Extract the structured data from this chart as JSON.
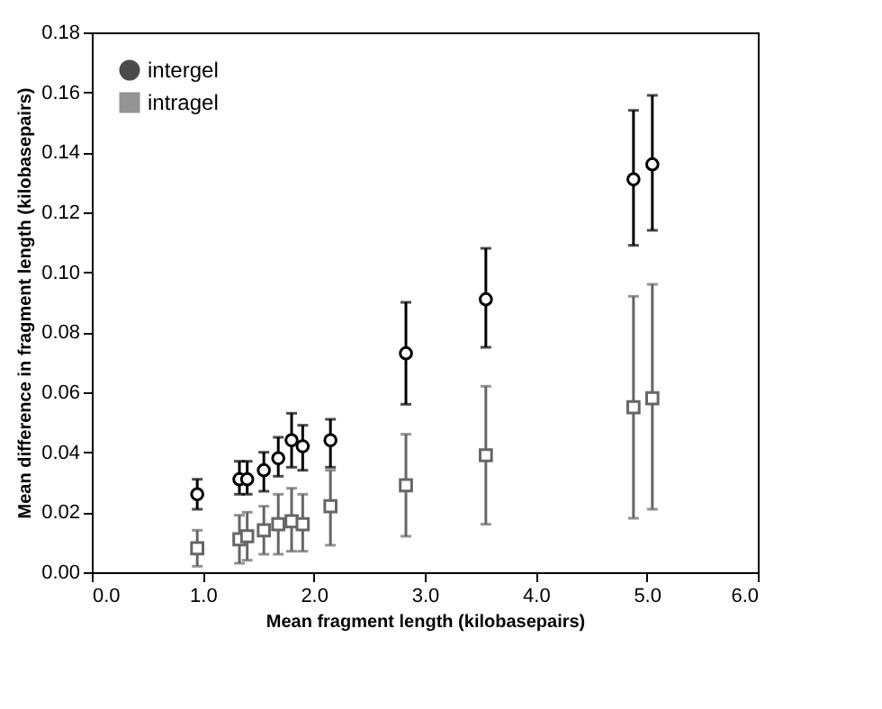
{
  "chart_data": {
    "type": "scatter",
    "xlabel": "Mean fragment length (kilobasepairs)",
    "ylabel": "Mean difference in fragment length (kilobasepairs)",
    "x": [
      0.95,
      1.33,
      1.4,
      1.55,
      1.68,
      1.8,
      1.9,
      2.15,
      2.83,
      3.55,
      4.88,
      5.05
    ],
    "series": [
      {
        "name": "intergel",
        "color": "#000000",
        "marker": "circle",
        "values": [
          0.026,
          0.031,
          0.031,
          0.034,
          0.038,
          0.044,
          0.042,
          0.044,
          0.073,
          0.091,
          0.131,
          0.136
        ],
        "errors": [
          [
            0.021,
            0.031
          ],
          [
            0.026,
            0.037
          ],
          [
            0.026,
            0.037
          ],
          [
            0.027,
            0.04
          ],
          [
            0.032,
            0.045
          ],
          [
            0.035,
            0.053
          ],
          [
            0.034,
            0.049
          ],
          [
            0.035,
            0.051
          ],
          [
            0.056,
            0.09
          ],
          [
            0.075,
            0.108
          ],
          [
            0.109,
            0.154
          ],
          [
            0.114,
            0.159
          ]
        ]
      },
      {
        "name": "intragel",
        "color": "#666666",
        "marker": "square",
        "values": [
          0.008,
          0.011,
          0.012,
          0.014,
          0.016,
          0.017,
          0.016,
          0.022,
          0.029,
          0.039,
          0.055,
          0.058
        ],
        "errors": [
          [
            0.002,
            0.014
          ],
          [
            0.003,
            0.019
          ],
          [
            0.004,
            0.02
          ],
          [
            0.006,
            0.022
          ],
          [
            0.006,
            0.026
          ],
          [
            0.007,
            0.028
          ],
          [
            0.007,
            0.026
          ],
          [
            0.009,
            0.034
          ],
          [
            0.012,
            0.046
          ],
          [
            0.016,
            0.062
          ],
          [
            0.018,
            0.092
          ],
          [
            0.021,
            0.096
          ]
        ]
      }
    ],
    "xlim": [
      0,
      6
    ],
    "xticks": [
      {
        "value": 0,
        "label": "0.0"
      },
      {
        "value": 1,
        "label": "1.0"
      },
      {
        "value": 2,
        "label": "2.0"
      },
      {
        "value": 3,
        "label": "3.0"
      },
      {
        "value": 4,
        "label": "4.0"
      },
      {
        "value": 5,
        "label": "5.0"
      },
      {
        "value": 6,
        "label": "6.0"
      }
    ],
    "ylim": [
      0,
      0.18
    ],
    "yticks": [
      {
        "value": 0,
        "label": "0.00"
      },
      {
        "value": 0.02,
        "label": "0.02"
      },
      {
        "value": 0.04,
        "label": "0.04"
      },
      {
        "value": 0.06,
        "label": "0.06"
      },
      {
        "value": 0.08,
        "label": "0.08"
      },
      {
        "value": 0.1,
        "label": "0.10"
      },
      {
        "value": 0.12,
        "label": "0.12"
      },
      {
        "value": 0.14,
        "label": "0.14"
      },
      {
        "value": 0.16,
        "label": "0.16"
      },
      {
        "value": 0.18,
        "label": "0.18"
      }
    ],
    "legend": "top left",
    "grid": false
  }
}
